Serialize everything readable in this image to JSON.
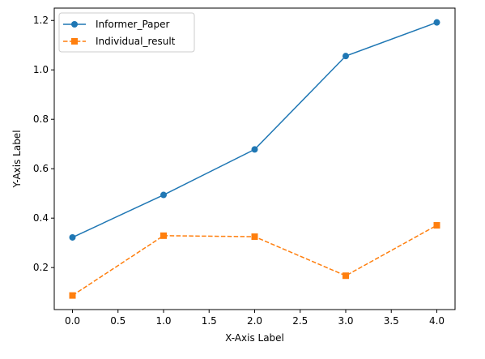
{
  "chart_data": {
    "type": "line",
    "title": "",
    "xlabel": "X-Axis Label",
    "ylabel": "Y-Axis Label",
    "xlim": [
      -0.2,
      4.2
    ],
    "ylim": [
      0.03,
      1.25
    ],
    "xticks": [
      0.0,
      0.5,
      1.0,
      1.5,
      2.0,
      2.5,
      3.0,
      3.5,
      4.0
    ],
    "xtick_labels": [
      "0.0",
      "0.5",
      "1.0",
      "1.5",
      "2.0",
      "2.5",
      "3.0",
      "3.5",
      "4.0"
    ],
    "yticks": [
      0.2,
      0.4,
      0.6,
      0.8,
      1.0,
      1.2
    ],
    "ytick_labels": [
      "0.2",
      "0.4",
      "0.6",
      "0.8",
      "1.0",
      "1.2"
    ],
    "grid": false,
    "legend_position": "top-left",
    "x": [
      0,
      1,
      2,
      3,
      4
    ],
    "series": [
      {
        "name": "Informer_Paper",
        "values": [
          0.322,
          0.494,
          0.678,
          1.056,
          1.192
        ],
        "color": "#1f77b4",
        "line_style": "solid",
        "marker": "circle"
      },
      {
        "name": "Individual_result",
        "values": [
          0.087,
          0.329,
          0.325,
          0.167,
          0.371
        ],
        "color": "#ff7f0e",
        "line_style": "dashed",
        "marker": "square"
      }
    ]
  }
}
